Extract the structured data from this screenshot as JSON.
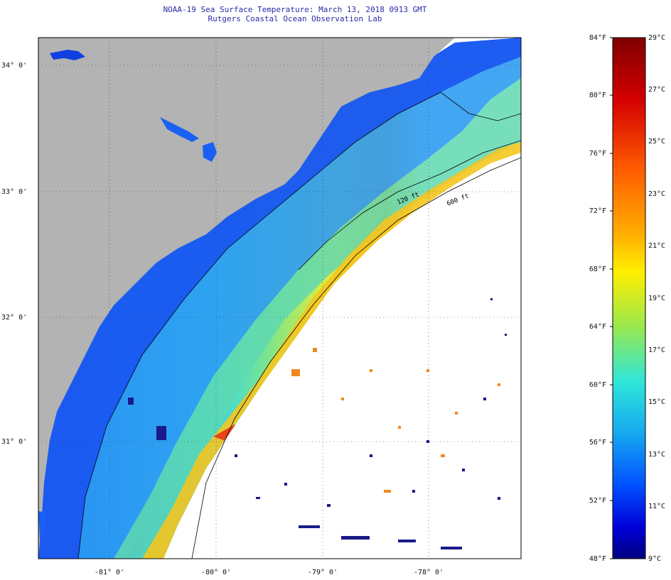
{
  "title_line1": "NOAA-19 Sea Surface Temperature:  March 13, 2018 0913 GMT",
  "title_line2": "Rutgers Coastal Ocean Observation Lab",
  "lat_labels": [
    "34° 0'",
    "33° 0'",
    "32° 0'",
    "31° 0'"
  ],
  "lon_labels": [
    "-81° 0'",
    "-80° 0'",
    "-79° 0'",
    "-78° 0'"
  ],
  "isobaths": [
    "120 ft",
    "600 ft"
  ],
  "colorbar": {
    "fahrenheit": [
      "84°F",
      "80°F",
      "76°F",
      "72°F",
      "68°F",
      "64°F",
      "60°F",
      "56°F",
      "52°F",
      "48°F"
    ],
    "celsius": [
      "29°C",
      "27°C",
      "25°C",
      "23°C",
      "21°C",
      "19°C",
      "17°C",
      "15°C",
      "13°C",
      "11°C",
      "9°C"
    ],
    "range_f": [
      48,
      84
    ],
    "range_c": [
      9,
      29
    ]
  },
  "colors": {
    "land": "#b3b3b3",
    "title": "#2a2aa8",
    "cold": "#00007f",
    "warm": "#7f0000"
  }
}
